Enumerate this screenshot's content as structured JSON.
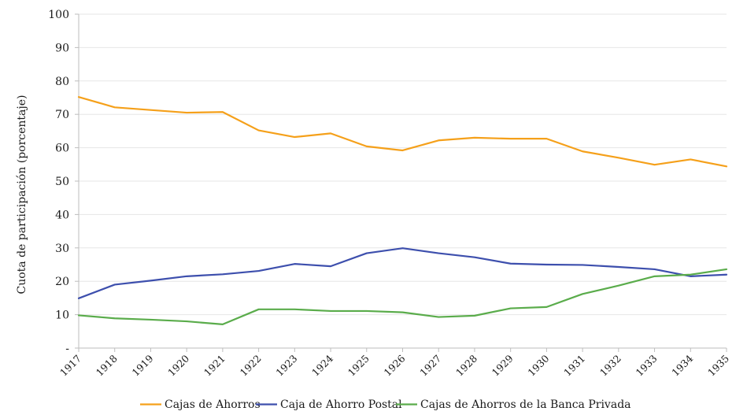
{
  "chart_data": {
    "type": "line",
    "title": "",
    "xlabel": "",
    "ylabel": "Cuota de participación (porcentaje)",
    "ylim": [
      0,
      100
    ],
    "ytick_step": 10,
    "ytick_labels": [
      "-",
      "10",
      "20",
      "30",
      "40",
      "50",
      "60",
      "70",
      "80",
      "90",
      "100"
    ],
    "grid": "horizontal",
    "legend_position": "bottom",
    "categories": [
      "1917",
      "1918",
      "1919",
      "1920",
      "1921",
      "1922",
      "1923",
      "1924",
      "1925",
      "1926",
      "1927",
      "1928",
      "1929",
      "1930",
      "1931",
      "1932",
      "1933",
      "1934",
      "1935"
    ],
    "series": [
      {
        "name": "Cajas de Ahorros",
        "color": "#f5a01a",
        "values": [
          75.2,
          72.1,
          71.3,
          70.5,
          70.7,
          65.2,
          63.2,
          64.3,
          60.4,
          59.2,
          62.2,
          63.0,
          62.7,
          62.7,
          58.9,
          57.0,
          54.9,
          56.5,
          54.4
        ]
      },
      {
        "name": "Caja de Ahorro Postal",
        "color": "#3d4fad",
        "values": [
          14.9,
          19.0,
          20.2,
          21.5,
          22.1,
          23.1,
          25.2,
          24.5,
          28.4,
          29.9,
          28.4,
          27.2,
          25.3,
          25.0,
          24.9,
          24.3,
          23.6,
          21.5,
          22.0
        ]
      },
      {
        "name": "Cajas de Ahorros de la  Banca Privada",
        "color": "#5aac4b",
        "values": [
          9.8,
          8.9,
          8.5,
          8.0,
          7.1,
          11.6,
          11.6,
          11.1,
          11.1,
          10.7,
          9.3,
          9.7,
          11.9,
          12.3,
          16.2,
          18.7,
          21.5,
          22.0,
          23.6
        ]
      }
    ]
  }
}
